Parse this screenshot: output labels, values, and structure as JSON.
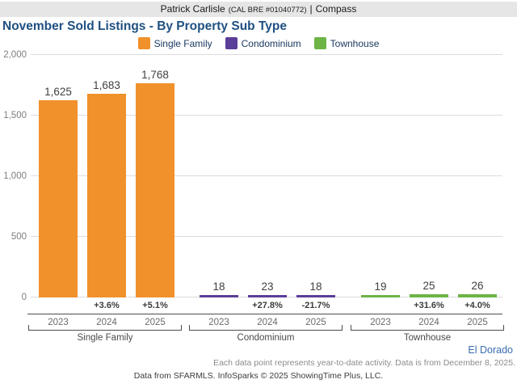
{
  "header": {
    "name": "Patrick Carlisle",
    "license": "(CAL BRE #01040772)",
    "separator": "|",
    "company": "Compass"
  },
  "title": "November Sold Listings - By Property Sub Type",
  "chart_data": {
    "type": "bar",
    "title": "November Sold Listings - By Property Sub Type",
    "xlabel": "",
    "ylabel": "",
    "ylim": [
      0,
      2000
    ],
    "yticks": [
      0,
      500,
      1000,
      1500,
      2000
    ],
    "ytick_labels": [
      "0",
      "500",
      "1,000",
      "1,500",
      "2,000"
    ],
    "grid": true,
    "legend_position": "top",
    "legend": [
      {
        "label": "Single Family",
        "color": "#F0912B"
      },
      {
        "label": "Condominium",
        "color": "#5B3E98"
      },
      {
        "label": "Townhouse",
        "color": "#6CB445"
      }
    ],
    "categories": [
      "2023",
      "2024",
      "2025"
    ],
    "groups": [
      {
        "label": "Single Family",
        "color": "#F0912B",
        "values": [
          1625,
          1683,
          1768
        ],
        "value_labels": [
          "1,625",
          "1,683",
          "1,768"
        ],
        "pct_change": [
          null,
          "+3.6%",
          "+5.1%"
        ]
      },
      {
        "label": "Condominium",
        "color": "#5B3E98",
        "values": [
          18,
          23,
          18
        ],
        "value_labels": [
          "18",
          "23",
          "18"
        ],
        "pct_change": [
          null,
          "+27.8%",
          "-21.7%"
        ]
      },
      {
        "label": "Townhouse",
        "color": "#6CB445",
        "values": [
          19,
          25,
          26
        ],
        "value_labels": [
          "19",
          "25",
          "26"
        ],
        "pct_change": [
          null,
          "+31.6%",
          "+4.0%"
        ]
      }
    ]
  },
  "footer": {
    "region_label": "El Dorado",
    "note": "Each data point represents year-to-date activity. Data is from December 8, 2025.",
    "attribution": "Data from SFARMLS. InfoSparks © 2025 ShowingTime Plus, LLC."
  }
}
